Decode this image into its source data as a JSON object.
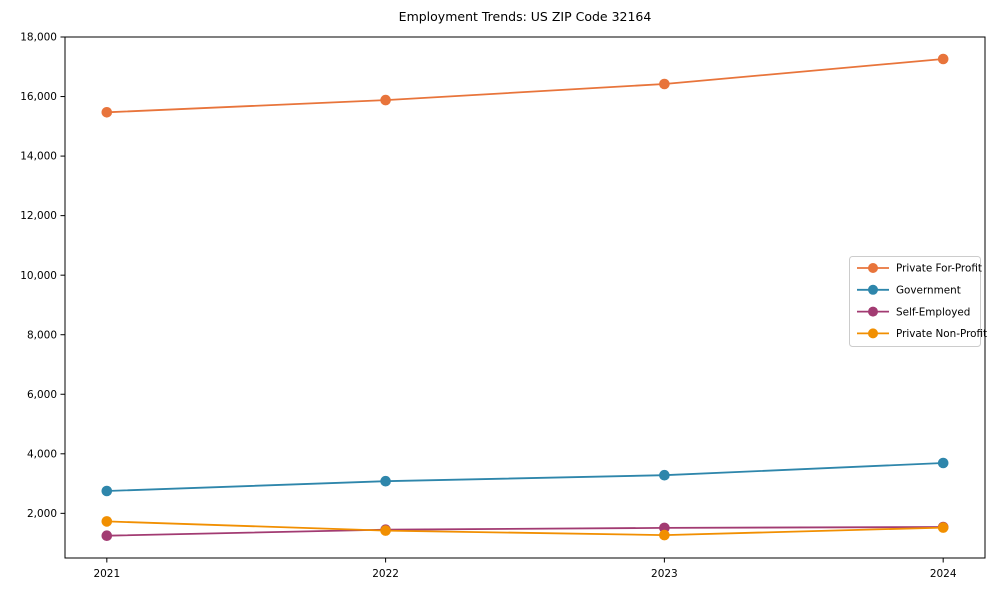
{
  "chart_data": {
    "type": "line",
    "title": "Employment Trends: US ZIP Code 32164",
    "xlabel": "",
    "ylabel": "",
    "x": [
      2021,
      2022,
      2023,
      2024
    ],
    "x_tick_labels": [
      "2021",
      "2022",
      "2023",
      "2024"
    ],
    "xlim": [
      2020.85,
      2024.15
    ],
    "ylim": [
      500,
      18000
    ],
    "yticks": [
      2000,
      4000,
      6000,
      8000,
      10000,
      12000,
      14000,
      16000,
      18000
    ],
    "ytick_labels": [
      "2,000",
      "4,000",
      "6,000",
      "8,000",
      "10,000",
      "12,000",
      "14,000",
      "16,000",
      "18,000"
    ],
    "grid": false,
    "marker": "circle",
    "legend_position": "center right",
    "series": [
      {
        "name": "Private For-Profit",
        "color": "#E8743B",
        "values": [
          15470,
          15880,
          16420,
          17260
        ]
      },
      {
        "name": "Government",
        "color": "#2E86AB",
        "values": [
          2750,
          3080,
          3280,
          3690
        ]
      },
      {
        "name": "Self-Employed",
        "color": "#A23B72",
        "values": [
          1250,
          1450,
          1510,
          1540
        ]
      },
      {
        "name": "Private Non-Profit",
        "color": "#F18F01",
        "values": [
          1730,
          1420,
          1270,
          1520
        ]
      }
    ],
    "colors": {
      "spine": "#000000",
      "tick_label": "#000000",
      "legend_border": "#cccccc",
      "legend_bg": "#ffffff"
    }
  }
}
